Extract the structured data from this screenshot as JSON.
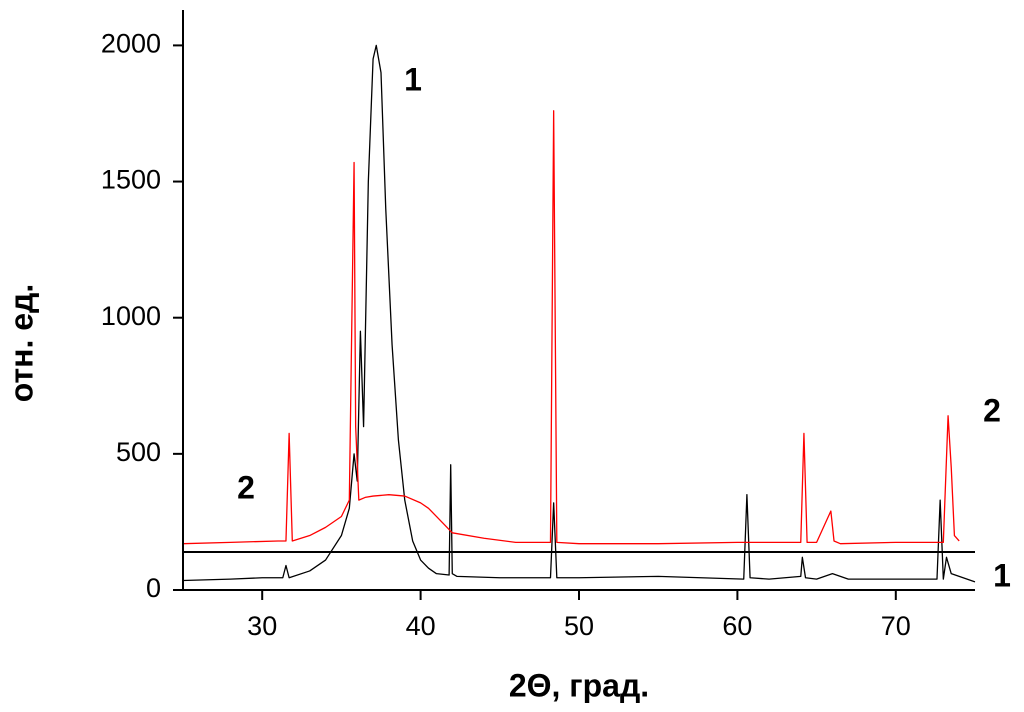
{
  "chart_data": {
    "type": "line",
    "xlabel": "2Θ, град.",
    "ylabel": "отн. ед.",
    "xlim": [
      25,
      75
    ],
    "ylim": [
      0,
      2130
    ],
    "xticks": [
      30,
      40,
      50,
      60,
      70
    ],
    "yticks": [
      0,
      500,
      1000,
      1500,
      2000
    ],
    "grid": false,
    "annotations": [
      "1",
      "2",
      "2",
      "1"
    ],
    "series": [
      {
        "color": "#000000",
        "x": [
          25,
          28,
          30,
          31.3,
          31.5,
          31.7,
          33,
          34,
          35,
          35.5,
          35.8,
          36.0,
          36.2,
          36.4,
          36.7,
          37.0,
          37.2,
          37.5,
          37.8,
          38.2,
          38.6,
          39,
          39.5,
          40,
          40.5,
          41,
          41.8,
          41.9,
          42.0,
          42.3,
          45,
          48.2,
          48.4,
          48.6,
          50,
          55,
          60.4,
          60.6,
          60.8,
          62,
          64,
          64.1,
          64.3,
          65,
          66,
          67,
          70,
          72.6,
          72.8,
          73,
          73.2,
          73.5,
          75
        ],
        "values": [
          35,
          40,
          45,
          45,
          90,
          45,
          70,
          110,
          200,
          300,
          500,
          400,
          950,
          600,
          1500,
          1950,
          2000,
          1900,
          1400,
          900,
          550,
          330,
          180,
          110,
          80,
          60,
          55,
          460,
          60,
          50,
          45,
          45,
          320,
          45,
          45,
          50,
          40,
          350,
          45,
          40,
          50,
          120,
          45,
          40,
          60,
          40,
          40,
          40,
          330,
          40,
          120,
          60,
          30
        ]
      },
      {
        "color": "#ff0000",
        "x": [
          25,
          28,
          31,
          31.5,
          31.7,
          31.9,
          33,
          34,
          35,
          35.5,
          35.8,
          35.9,
          36.1,
          36.5,
          37,
          38,
          39,
          40,
          40.5,
          41,
          42,
          44,
          46,
          48.2,
          48.4,
          48.6,
          50,
          55,
          60,
          64,
          64.2,
          64.4,
          65,
          65.9,
          66.1,
          66.5,
          70,
          73,
          73.3,
          73.5,
          73.7,
          74
        ],
        "values": [
          170,
          175,
          180,
          180,
          575,
          180,
          200,
          230,
          270,
          330,
          1570,
          600,
          330,
          340,
          345,
          350,
          345,
          320,
          300,
          270,
          210,
          190,
          175,
          175,
          1760,
          175,
          170,
          170,
          175,
          175,
          575,
          175,
          175,
          290,
          180,
          170,
          175,
          175,
          640,
          450,
          200,
          180
        ]
      }
    ]
  }
}
